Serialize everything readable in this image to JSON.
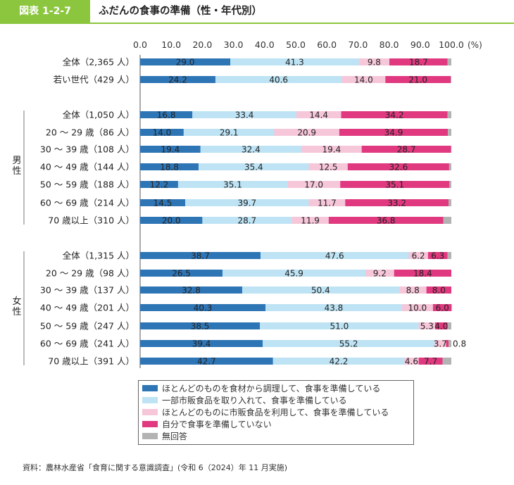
{
  "header": {
    "figure_label": "図表 1-2-7",
    "title": "ふだんの食事の準備（性・年代別）"
  },
  "colors": {
    "s1": "#2e75b6",
    "s2": "#bde3f4",
    "s3": "#f6c6d9",
    "s4": "#e0397f",
    "s5": "#b3b3b3",
    "accent": "#8cc63f"
  },
  "chart_data": {
    "type": "bar",
    "orientation": "horizontal",
    "stacked": true,
    "x_ticks": [
      "0.0",
      "10.0",
      "20.0",
      "30.0",
      "40.0",
      "50.0",
      "60.0",
      "70.0",
      "80.0",
      "90.0",
      "100.0"
    ],
    "x_unit": "(%)",
    "xlim": [
      0,
      100
    ],
    "group_labels": [
      "男性",
      "女性"
    ],
    "categories": [
      "全体（2,365 人）",
      "若い世代（429 人）",
      "全体（1,050 人）",
      "20 ～ 29 歳（86 人）",
      "30 ～ 39 歳（108 人）",
      "40 ～ 49 歳（144 人）",
      "50 ～ 59 歳（188 人）",
      "60 ～ 69 歳（214 人）",
      "70 歳以上（310 人）",
      "全体（1,315 人）",
      "20 ～ 29 歳（98 人）",
      "30 ～ 39 歳（137 人）",
      "40 ～ 49 歳（201 人）",
      "50 ～ 59 歳（247 人）",
      "60 ～ 69 歳（241 人）",
      "70 歳以上（391 人）"
    ],
    "series": [
      {
        "name": "ほとんどのものを食材から調理して、食事を準備している",
        "values": [
          29.0,
          24.2,
          16.8,
          14.0,
          19.4,
          18.8,
          12.2,
          14.5,
          20.0,
          38.7,
          26.5,
          32.8,
          40.3,
          38.5,
          39.4,
          42.7
        ]
      },
      {
        "name": "一部市販食品を取り入れて、食事を準備している",
        "values": [
          41.3,
          40.6,
          33.4,
          29.1,
          32.4,
          35.4,
          35.1,
          39.7,
          28.7,
          47.6,
          45.9,
          50.4,
          43.8,
          51.0,
          55.2,
          42.2
        ]
      },
      {
        "name": "ほとんどのものに市販食品を利用して、食事を準備している",
        "values": [
          9.8,
          14.0,
          14.4,
          20.9,
          19.4,
          12.5,
          17.0,
          11.7,
          11.9,
          6.2,
          9.2,
          8.8,
          10.0,
          5.3,
          3.7,
          4.6
        ]
      },
      {
        "name": "自分で食事を準備していない",
        "values": [
          18.7,
          21.0,
          34.2,
          34.9,
          28.7,
          32.6,
          35.1,
          33.2,
          36.8,
          6.3,
          18.4,
          8.0,
          6.0,
          4.0,
          0.8,
          7.7
        ]
      },
      {
        "name": "無回答",
        "values": [
          1.2,
          0.2,
          1.2,
          1.1,
          0.1,
          0.7,
          0.6,
          0.9,
          2.6,
          1.2,
          0.0,
          0.0,
          0.0,
          1.2,
          0.9,
          2.8
        ]
      }
    ],
    "data_labels": [
      [
        "29.0",
        "41.3",
        "9.8",
        "18.7"
      ],
      [
        "24.2",
        "40.6",
        "14.0",
        "21.0"
      ],
      [
        "16.8",
        "33.4",
        "14.4",
        "34.2"
      ],
      [
        "14.0",
        "29.1",
        "20.9",
        "34.9"
      ],
      [
        "19.4",
        "32.4",
        "19.4",
        "28.7"
      ],
      [
        "18.8",
        "35.4",
        "12.5",
        "32.6"
      ],
      [
        "12.2",
        "35.1",
        "17.0",
        "35.1"
      ],
      [
        "14.5",
        "39.7",
        "11.7",
        "33.2"
      ],
      [
        "20.0",
        "28.7",
        "11.9",
        "36.8"
      ],
      [
        "38.7",
        "47.6",
        "6.2",
        "6.3"
      ],
      [
        "26.5",
        "45.9",
        "9.2",
        "18.4"
      ],
      [
        "32.8",
        "50.4",
        "8.8",
        "8.0"
      ],
      [
        "40.3",
        "43.8",
        "10.0",
        "6.0"
      ],
      [
        "38.5",
        "51.0",
        "5.3",
        "4.0"
      ],
      [
        "39.4",
        "55.2",
        "3.7",
        "0.8"
      ],
      [
        "42.7",
        "42.2",
        "4.6",
        "7.7"
      ]
    ],
    "legend_position": "bottom"
  },
  "source": "資料：農林水産省「食育に関する意識調査」(令和 6（2024）年 11 月実施)"
}
